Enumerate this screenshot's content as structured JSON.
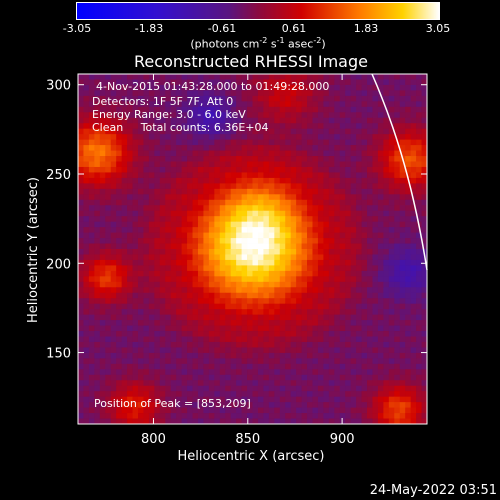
{
  "colorbar": {
    "ticks": [
      "-3.05",
      "-1.83",
      "-0.61",
      "0.61",
      "1.83",
      "3.05"
    ],
    "units_prefix": "(photons cm",
    "units_exp1": "-2",
    "units_mid1": " s",
    "units_exp2": "-1",
    "units_mid2": " asec",
    "units_exp3": "-2",
    "units_suffix": ")",
    "range": [
      -3.05,
      3.05
    ]
  },
  "chart_data": {
    "type": "heatmap",
    "title": "Reconstructed RHESSI Image",
    "xlabel": "Heliocentric X (arcsec)",
    "ylabel": "Heliocentric Y (arcsec)",
    "xlim": [
      760,
      945
    ],
    "ylim": [
      110,
      306
    ],
    "xticks": [
      "800",
      "850",
      "900"
    ],
    "yticks": [
      "150",
      "200",
      "250",
      "300"
    ],
    "peak": [
      853,
      209
    ],
    "annotations": [
      "4-Nov-2015 01:43:28.000 to 01:49:28.000",
      "Detectors: 1F 5F 7F, Att 0",
      "Energy Range: 3.0 - 6.0 keV",
      "Clean     Total counts: 6.36E+04"
    ],
    "peak_label": "Position of Peak = [853,209]"
  },
  "footer": {
    "timestamp": "24-May-2022 03:51"
  }
}
